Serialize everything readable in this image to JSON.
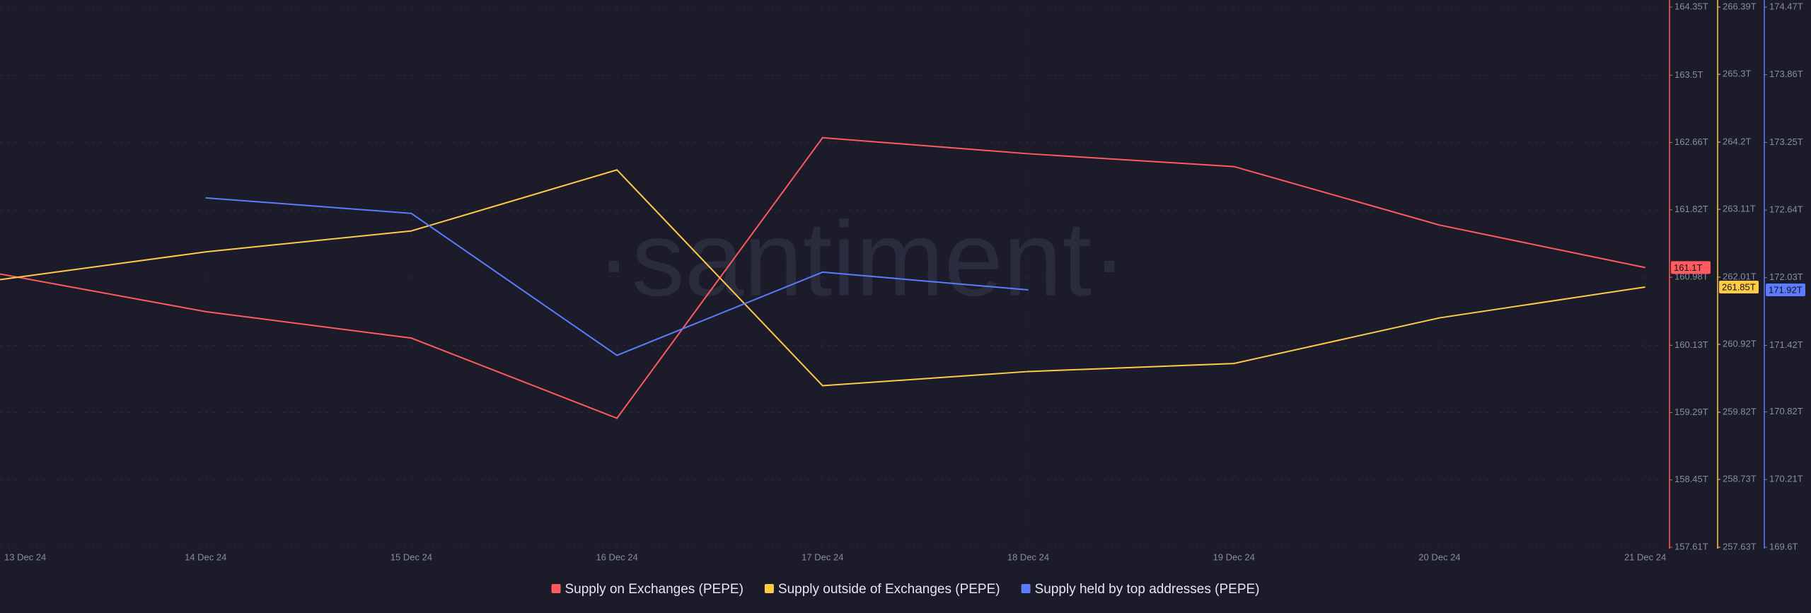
{
  "chart_data": {
    "type": "line",
    "watermark": "·santiment·",
    "categories": [
      "13 Dec 24",
      "14 Dec 24",
      "15 Dec 24",
      "16 Dec 24",
      "17 Dec 24",
      "18 Dec 24",
      "19 Dec 24",
      "20 Dec 24",
      "21 Dec 24"
    ],
    "series": [
      {
        "name": "Supply on Exchanges (PEPE)",
        "color": "#ff5a5f",
        "axis": "y",
        "values": [
          161.02,
          160.55,
          160.22,
          159.22,
          162.72,
          162.52,
          162.36,
          161.63,
          161.1
        ],
        "value_labels": [
          null,
          null,
          null,
          null,
          null,
          null,
          null,
          null,
          "161.1T"
        ]
      },
      {
        "name": "Supply outside of Exchanges (PEPE)",
        "color": "#ffcb47",
        "axis": "y2",
        "values": [
          261.97,
          262.42,
          262.76,
          263.75,
          260.25,
          260.48,
          260.61,
          261.35,
          261.85
        ],
        "value_labels": [
          null,
          null,
          null,
          null,
          null,
          null,
          null,
          null,
          "261.85T"
        ]
      },
      {
        "name": "Supply held by top addresses (PEPE)",
        "color": "#5b7cff",
        "axis": "y3",
        "values": [
          null,
          172.75,
          172.61,
          171.33,
          172.08,
          171.92,
          null,
          null,
          null
        ],
        "value_labels": [
          null,
          null,
          null,
          null,
          null,
          "171.92T",
          null,
          null,
          null
        ]
      }
    ],
    "ylim": [
      157.61,
      164.35
    ],
    "yticks": [
      {
        "value": 157.61,
        "label": "157.61T"
      },
      {
        "value": 158.45,
        "label": "158.45T"
      },
      {
        "value": 159.29,
        "label": "159.29T"
      },
      {
        "value": 160.13,
        "label": "160.13T"
      },
      {
        "value": 160.98,
        "label": "160.98T"
      },
      {
        "value": 161.82,
        "label": "161.82T"
      },
      {
        "value": 162.66,
        "label": "162.66T"
      },
      {
        "value": 163.5,
        "label": "163.5T"
      },
      {
        "value": 164.35,
        "label": "164.35T"
      }
    ],
    "y2lim": [
      257.63,
      266.39
    ],
    "y2ticks": [
      {
        "value": 257.63,
        "label": "257.63T"
      },
      {
        "value": 258.73,
        "label": "258.73T"
      },
      {
        "value": 259.82,
        "label": "259.82T"
      },
      {
        "value": 260.92,
        "label": "260.92T"
      },
      {
        "value": 262.01,
        "label": "262.01T"
      },
      {
        "value": 263.11,
        "label": "263.11T"
      },
      {
        "value": 264.2,
        "label": "264.2T"
      },
      {
        "value": 265.3,
        "label": "265.3T"
      },
      {
        "value": 266.39,
        "label": "266.39T"
      }
    ],
    "y3lim": [
      169.6,
      174.47
    ],
    "y3ticks": [
      {
        "value": 169.6,
        "label": "169.6T"
      },
      {
        "value": 170.21,
        "label": "170.21T"
      },
      {
        "value": 170.82,
        "label": "170.82T"
      },
      {
        "value": 171.42,
        "label": "171.42T"
      },
      {
        "value": 172.03,
        "label": "172.03T"
      },
      {
        "value": 172.64,
        "label": "172.64T"
      },
      {
        "value": 173.25,
        "label": "173.25T"
      },
      {
        "value": 173.86,
        "label": "173.86T"
      },
      {
        "value": 174.47,
        "label": "174.47T"
      }
    ],
    "grid": true
  }
}
